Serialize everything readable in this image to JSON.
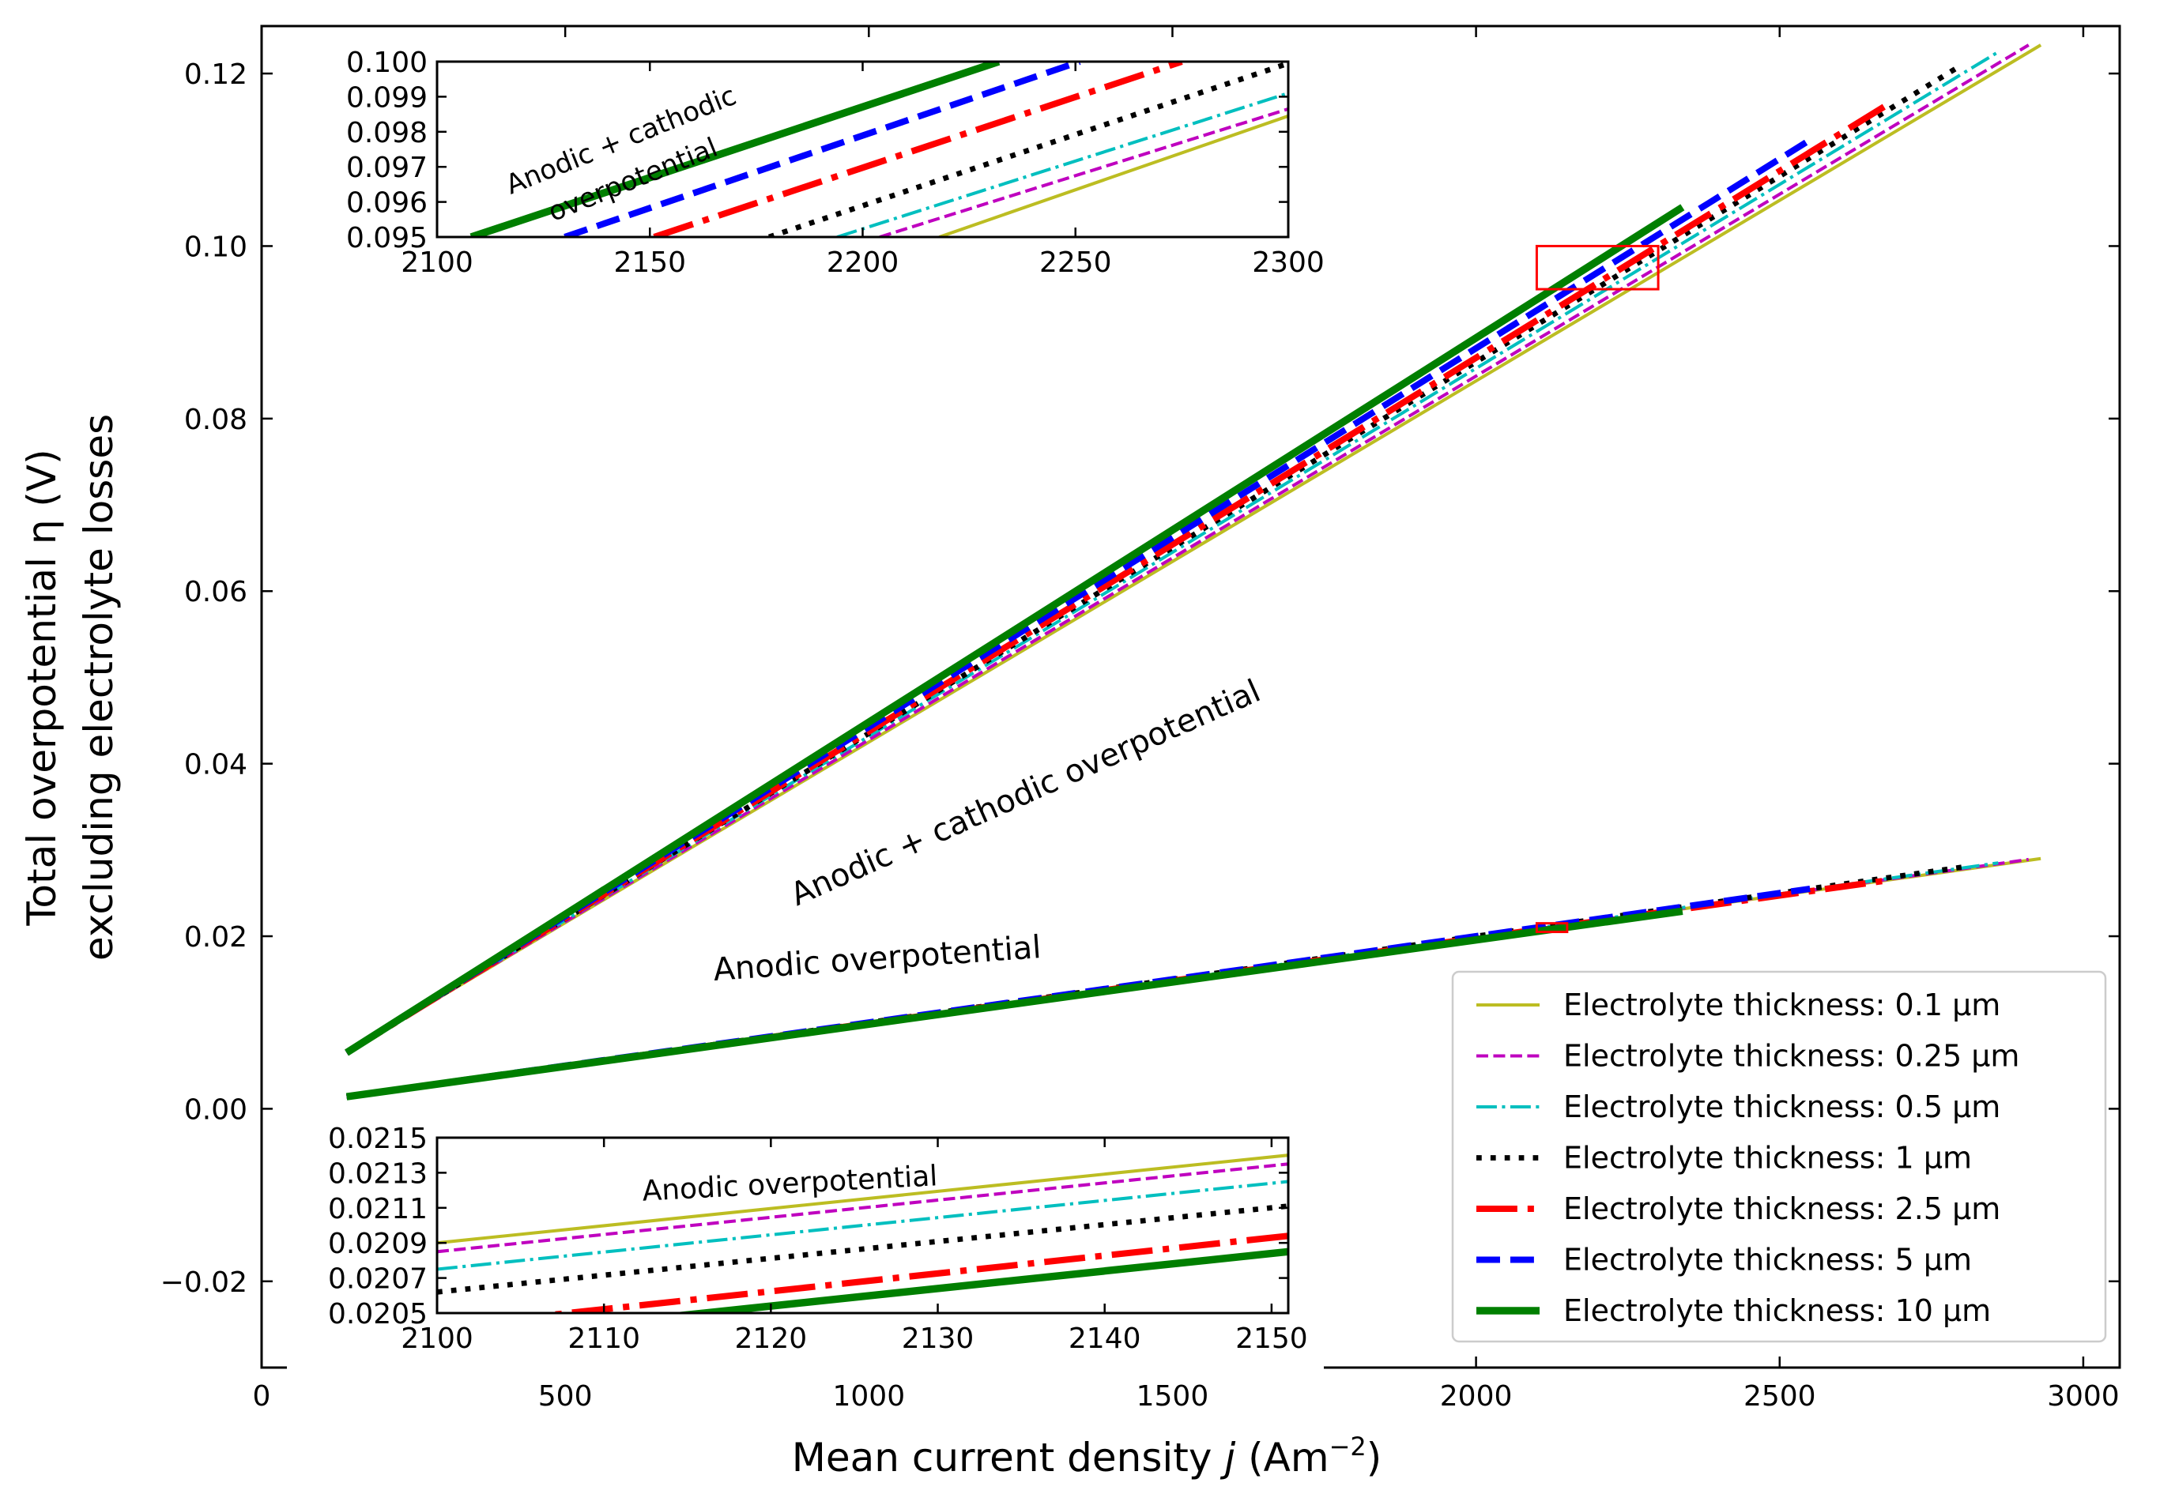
{
  "chart_data": {
    "type": "line",
    "xlabel": "Mean current density j (Am⁻²)",
    "xlabel_parts": {
      "prefix": "Mean current density ",
      "var": "j",
      "unit_open": " (Am",
      "exp": "−2",
      "unit_close": ")"
    },
    "ylabel_lines": [
      "Total overpotential η (V)",
      "excluding electrolyte losses"
    ],
    "xlim": [
      0,
      3060
    ],
    "ylim": [
      -0.03,
      0.1255
    ],
    "xticks": [
      0,
      500,
      1000,
      1500,
      2000,
      2500,
      3000
    ],
    "yticks": [
      -0.02,
      0.0,
      0.02,
      0.04,
      0.06,
      0.08,
      0.1,
      0.12
    ],
    "ytick_labels": [
      "−0.02",
      "0.00",
      "0.02",
      "0.04",
      "0.06",
      "0.08",
      "0.10",
      "0.12"
    ],
    "annotations": [
      {
        "text": "Anodic + cathodic overpotential",
        "x": 1265,
        "y": 0.0355,
        "angle": -24
      },
      {
        "text": "Anodic overpotential",
        "x": 1015,
        "y": 0.0162,
        "angle": -4
      }
    ],
    "zoom_boxes": [
      {
        "x": [
          2100,
          2300
        ],
        "y": [
          0.095,
          0.1
        ]
      },
      {
        "x": [
          2100,
          2150
        ],
        "y": [
          0.0205,
          0.0215
        ]
      }
    ],
    "legend_location": "lower right",
    "series": [
      {
        "name": "Electrolyte thickness: 0.1 μm",
        "color": "#bcbd22",
        "style": "solid",
        "width": 1.5,
        "total": [
          [
            140,
            0.0065
          ],
          [
            2930,
            0.1233
          ]
        ],
        "anodic": [
          [
            140,
            0.0014
          ],
          [
            2930,
            0.029
          ]
        ]
      },
      {
        "name": "Electrolyte thickness: 0.25 μm",
        "color": "#bf00bf",
        "style": "dashed",
        "width": 1.5,
        "total": [
          [
            140,
            0.0065
          ],
          [
            2910,
            0.1233
          ]
        ],
        "anodic": [
          [
            140,
            0.0014
          ],
          [
            2910,
            0.0289
          ]
        ]
      },
      {
        "name": "Electrolyte thickness: 0.5 μm",
        "color": "#00bfbf",
        "style": "dashdot",
        "width": 1.5,
        "total": [
          [
            140,
            0.0065
          ],
          [
            2860,
            0.1225
          ]
        ],
        "anodic": [
          [
            140,
            0.0014
          ],
          [
            2860,
            0.0285
          ]
        ]
      },
      {
        "name": "Electrolyte thickness: 1 μm",
        "color": "#000000",
        "style": "dotted",
        "width": 2.5,
        "total": [
          [
            140,
            0.0065
          ],
          [
            2800,
            0.121
          ]
        ],
        "anodic": [
          [
            140,
            0.0014
          ],
          [
            2800,
            0.028
          ]
        ]
      },
      {
        "name": "Electrolyte thickness: 2.5 μm",
        "color": "#ff0000",
        "style": "dashdot",
        "width": 3,
        "total": [
          [
            140,
            0.0065
          ],
          [
            2680,
            0.1165
          ]
        ],
        "anodic": [
          [
            140,
            0.0014
          ],
          [
            2680,
            0.0265
          ]
        ]
      },
      {
        "name": "Electrolyte thickness: 5 μm",
        "color": "#0000ff",
        "style": "dashed",
        "width": 3,
        "total": [
          [
            140,
            0.0065
          ],
          [
            2550,
            0.1123
          ]
        ],
        "anodic": [
          [
            140,
            0.0014
          ],
          [
            2550,
            0.0255
          ]
        ]
      },
      {
        "name": "Electrolyte thickness: 10 μm",
        "color": "#007f00",
        "style": "solid",
        "width": 3.5,
        "total": [
          [
            140,
            0.0065
          ],
          [
            2340,
            0.1045
          ]
        ],
        "anodic": [
          [
            140,
            0.0014
          ],
          [
            2340,
            0.0229
          ]
        ]
      }
    ],
    "inset_top": {
      "xlim": [
        2100,
        2300
      ],
      "ylim": [
        0.095,
        0.1
      ],
      "xticks": [
        2100,
        2150,
        2200,
        2250,
        2300
      ],
      "yticks": [
        0.095,
        0.096,
        0.097,
        0.098,
        0.099,
        0.1
      ],
      "ytick_labels": [
        "0.095",
        "0.096",
        "0.097",
        "0.098",
        "0.099",
        "0.100"
      ],
      "annotation_lines": [
        "Anodic + cathodic",
        "overpotential"
      ],
      "lines": [
        {
          "series": 0,
          "points": [
            [
              2218,
              0.095
            ],
            [
              2300,
              0.09845
            ]
          ]
        },
        {
          "series": 1,
          "points": [
            [
              2204,
              0.095
            ],
            [
              2300,
              0.09865
            ]
          ]
        },
        {
          "series": 2,
          "points": [
            [
              2194,
              0.095
            ],
            [
              2300,
              0.0991
            ]
          ]
        },
        {
          "series": 3,
          "points": [
            [
              2178,
              0.095
            ],
            [
              2300,
              0.09995
            ]
          ]
        },
        {
          "series": 4,
          "points": [
            [
              2151,
              0.095
            ],
            [
              2275,
              0.1
            ]
          ]
        },
        {
          "series": 5,
          "points": [
            [
              2130,
              0.095
            ],
            [
              2251,
              0.1
            ]
          ]
        },
        {
          "series": 6,
          "points": [
            [
              2108,
              0.095
            ],
            [
              2232,
              0.1
            ]
          ]
        }
      ]
    },
    "inset_bottom": {
      "xlim": [
        2100,
        2151
      ],
      "ylim": [
        0.0205,
        0.0215
      ],
      "xticks": [
        2100,
        2110,
        2120,
        2130,
        2140,
        2150
      ],
      "yticks": [
        0.0205,
        0.0207,
        0.0209,
        0.0211,
        0.0213,
        0.0215
      ],
      "ytick_labels": [
        "0.0205",
        "0.0207",
        "0.0209",
        "0.0211",
        "0.0213",
        "0.0215"
      ],
      "annotation": "Anodic overpotential",
      "lines": [
        {
          "series": 0,
          "points": [
            [
              2100,
              0.0209
            ],
            [
              2151,
              0.0214
            ]
          ]
        },
        {
          "series": 1,
          "points": [
            [
              2100,
              0.02085
            ],
            [
              2151,
              0.02135
            ]
          ]
        },
        {
          "series": 2,
          "points": [
            [
              2100,
              0.02075
            ],
            [
              2151,
              0.02125
            ]
          ]
        },
        {
          "series": 3,
          "points": [
            [
              2100,
              0.02062
            ],
            [
              2151,
              0.02111
            ]
          ]
        },
        {
          "series": 4,
          "points": [
            [
              2100,
              0.02042
            ],
            [
              2151,
              0.02094
            ]
          ]
        },
        {
          "series": 6,
          "points": [
            [
              2100,
              0.02034
            ],
            [
              2151,
              0.02085
            ]
          ]
        }
      ]
    }
  }
}
